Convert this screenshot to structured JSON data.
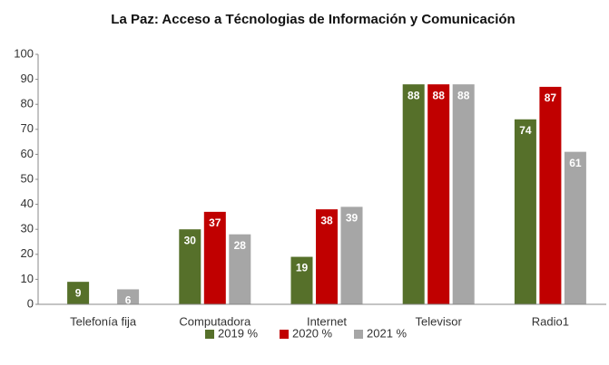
{
  "chart_data": {
    "type": "bar",
    "title": "La Paz: Acceso a Técnologias de Información y Comunicación",
    "categories": [
      "Telefonía fija",
      "Computadora",
      "Internet",
      "Televisor",
      "Radio1"
    ],
    "series": [
      {
        "name": "2019 %",
        "color": "#56702a",
        "values": [
          9,
          30,
          19,
          88,
          74
        ]
      },
      {
        "name": "2020 %",
        "color": "#c00000",
        "values": [
          null,
          37,
          38,
          88,
          87
        ]
      },
      {
        "name": "2021 %",
        "color": "#a6a6a6",
        "values": [
          6,
          28,
          39,
          88,
          61
        ]
      }
    ],
    "ylim": [
      0,
      100
    ],
    "yticks": [
      0,
      10,
      20,
      30,
      40,
      50,
      60,
      70,
      80,
      90,
      100
    ],
    "grid": false,
    "legend": "bottom"
  }
}
